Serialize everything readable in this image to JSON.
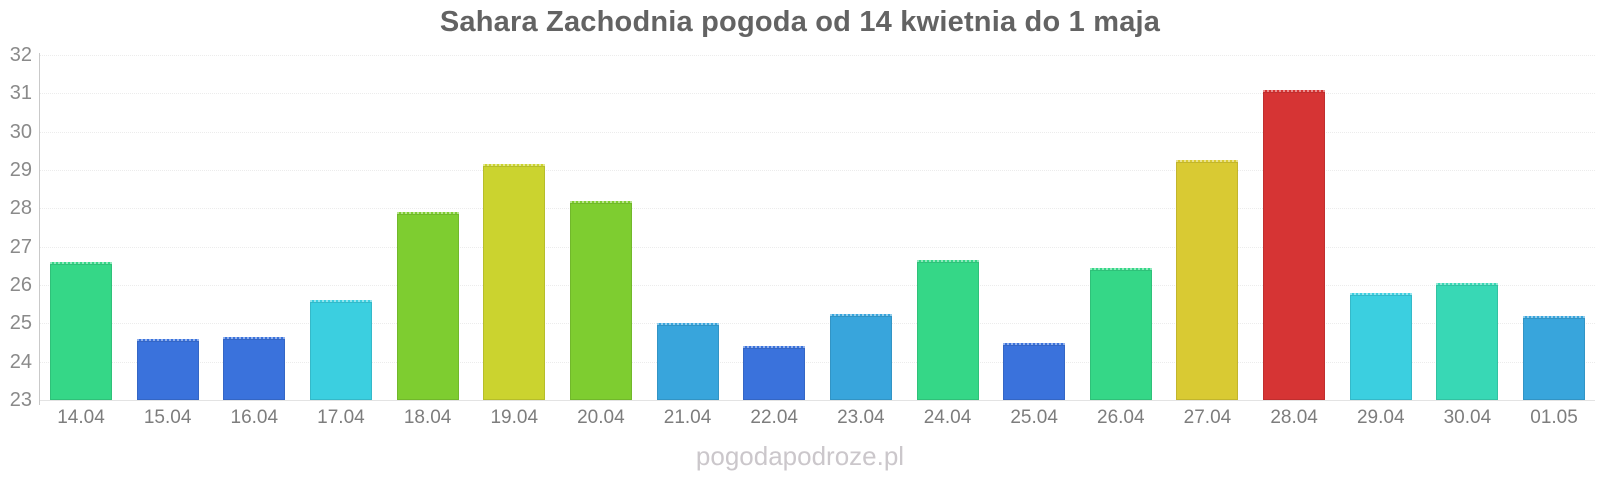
{
  "title": "Sahara Zachodnia pogoda od 14 kwietnia do 1 maja",
  "watermark": "pogodapodroze.pl",
  "chart_data": {
    "type": "bar",
    "title": "Sahara Zachodnia pogoda od 14 kwietnia do 1 maja",
    "xlabel": "",
    "ylabel": "",
    "ylim": [
      23,
      32
    ],
    "yticks": [
      23,
      24,
      25,
      26,
      27,
      28,
      29,
      30,
      31,
      32
    ],
    "grid": true,
    "legend": "none",
    "categories": [
      "14.04",
      "15.04",
      "16.04",
      "17.04",
      "18.04",
      "19.04",
      "20.04",
      "21.04",
      "22.04",
      "23.04",
      "24.04",
      "25.04",
      "26.04",
      "27.04",
      "28.04",
      "29.04",
      "30.04",
      "01.05"
    ],
    "values": [
      26.6,
      24.6,
      24.65,
      25.6,
      27.9,
      29.15,
      28.2,
      25.0,
      24.4,
      25.25,
      26.65,
      24.5,
      26.45,
      29.25,
      31.1,
      25.8,
      26.05,
      25.2
    ],
    "bar_colors": [
      "#35d787",
      "#3a72dc",
      "#3a72dc",
      "#3bcfe0",
      "#7ecd30",
      "#cbd32f",
      "#7ecd30",
      "#38a5dc",
      "#3a72dc",
      "#38a5dc",
      "#35d787",
      "#3a72dc",
      "#35d787",
      "#d9ca33",
      "#d63434",
      "#3bcfe0",
      "#38d8b5",
      "#38a5dc"
    ]
  },
  "colors": {
    "background": "#ffffff",
    "title_text": "#636363",
    "y_label_text": "#8a8a8a",
    "x_label_text": "#7d7d7d",
    "axis_line": "#c9c9c9",
    "gridline": "#ececec",
    "watermark_text": "#cbc7cb"
  }
}
